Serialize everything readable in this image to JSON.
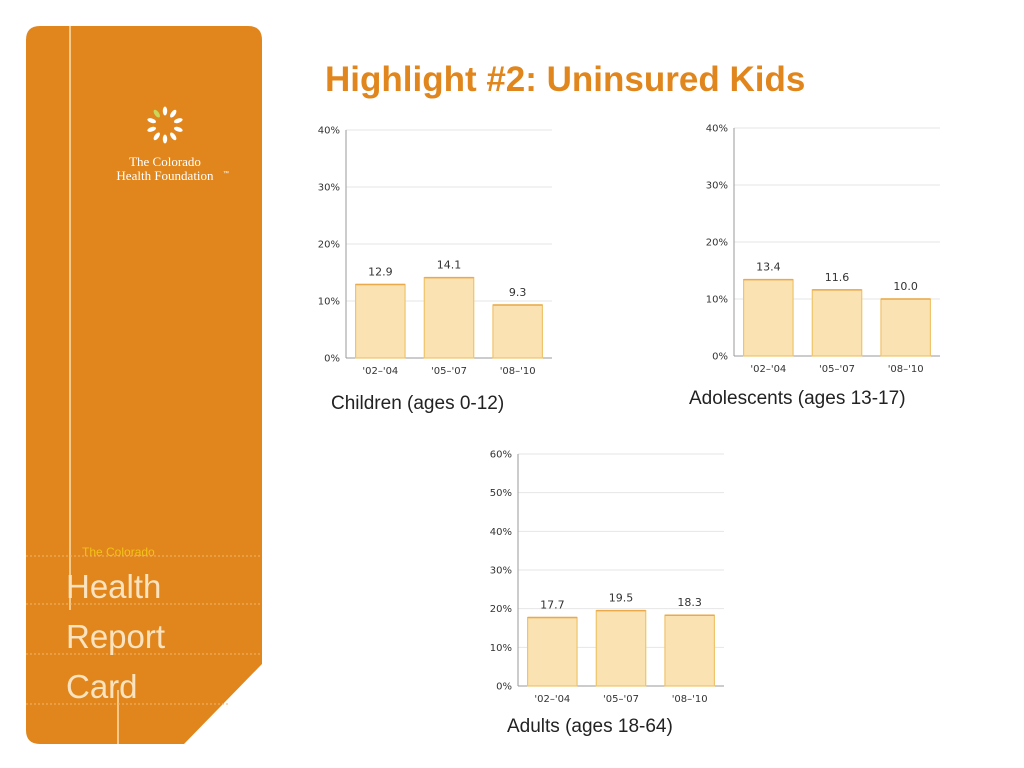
{
  "slide": {
    "title": "Highlight #2: Uninsured Kids"
  },
  "sidebar": {
    "logo_line1": "The Colorado",
    "logo_line2": "Health Foundation",
    "logo_tm": "™",
    "report_small": "The Colorado",
    "report_word1": "Health",
    "report_word2": "Report",
    "report_word3": "Card",
    "colors": {
      "panel": "#e0861c",
      "accent_text": "#f3c21a",
      "report_text": "#fbe3c0"
    }
  },
  "chart_data": [
    {
      "type": "bar",
      "categories": [
        "'02–'04",
        "'05–'07",
        "'08–'10"
      ],
      "values": [
        12.9,
        14.1,
        9.3
      ],
      "value_labels": [
        "12.9",
        "14.1",
        "9.3"
      ],
      "yticks": [
        "0%",
        "10%",
        "20%",
        "30%",
        "40%"
      ],
      "ylim": [
        0,
        40
      ],
      "caption": "Children (ages 0-12)",
      "grid": true,
      "bar_fill": "#fbe2b2",
      "bar_stroke": "#f0c46a"
    },
    {
      "type": "bar",
      "categories": [
        "'02–'04",
        "'05–'07",
        "'08–'10"
      ],
      "values": [
        13.4,
        11.6,
        10.0
      ],
      "value_labels": [
        "13.4",
        "11.6",
        "10.0"
      ],
      "yticks": [
        "0%",
        "10%",
        "20%",
        "30%",
        "40%"
      ],
      "ylim": [
        0,
        40
      ],
      "caption": "Adolescents (ages 13-17)",
      "grid": true,
      "bar_fill": "#fbe2b2",
      "bar_stroke": "#f0c46a"
    },
    {
      "type": "bar",
      "categories": [
        "'02–'04",
        "'05–'07",
        "'08–'10"
      ],
      "values": [
        17.7,
        19.5,
        18.3
      ],
      "value_labels": [
        "17.7",
        "19.5",
        "18.3"
      ],
      "yticks": [
        "0%",
        "10%",
        "20%",
        "30%",
        "40%",
        "50%",
        "60%"
      ],
      "ylim": [
        0,
        60
      ],
      "caption": "Adults (ages 18-64)",
      "grid": true,
      "bar_fill": "#fbe2b2",
      "bar_stroke": "#f0c46a"
    }
  ]
}
